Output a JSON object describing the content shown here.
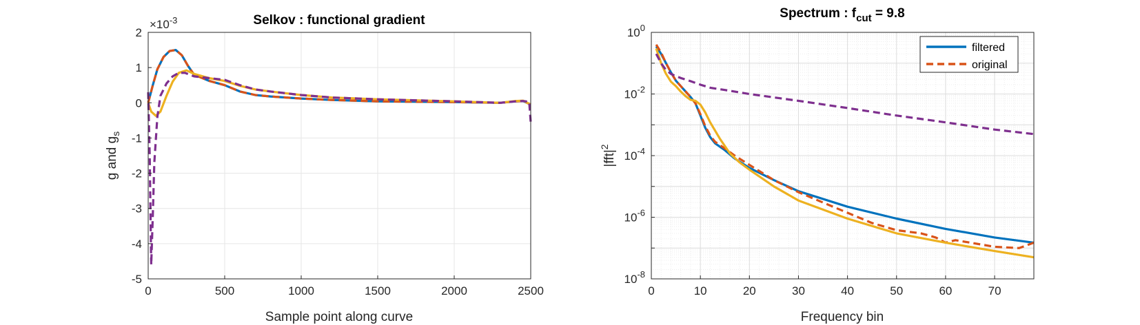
{
  "chart_data": [
    {
      "type": "line",
      "title": "Selkov : functional gradient",
      "xlabel": "Sample point along curve",
      "ylabel": "g and g",
      "ylabel_sub": "s",
      "y_exponent_base": "×10",
      "y_exponent_power": "-3",
      "xlim": [
        0,
        2500
      ],
      "ylim": [
        -5,
        2
      ],
      "xticks": [
        0,
        500,
        1000,
        1500,
        2000,
        2500
      ],
      "yticks": [
        -5,
        -4,
        -3,
        -2,
        -1,
        0,
        1,
        2
      ],
      "xtick_labels": [
        "0",
        "500",
        "1000",
        "1500",
        "2000",
        "2500"
      ],
      "ytick_labels": [
        "-5",
        "-4",
        "-3",
        "-2",
        "-1",
        "0",
        "1",
        "2"
      ],
      "grid": true,
      "series": [
        {
          "color": "#0072BD",
          "style": "solid",
          "x": [
            0,
            30,
            60,
            100,
            140,
            180,
            220,
            260,
            300,
            400,
            500,
            600,
            700,
            800,
            1000,
            1200,
            1500,
            2000,
            2300,
            2400,
            2450,
            2500
          ],
          "y": [
            0.0,
            0.5,
            0.95,
            1.3,
            1.47,
            1.5,
            1.35,
            1.05,
            0.8,
            0.62,
            0.5,
            0.32,
            0.22,
            0.18,
            0.12,
            0.08,
            0.04,
            0.02,
            0.0,
            0.04,
            0.05,
            -0.05
          ]
        },
        {
          "color": "#D95319",
          "style": "dashed",
          "x": [
            0,
            30,
            60,
            100,
            140,
            180,
            220,
            260,
            300,
            400,
            500,
            600,
            700,
            800,
            1000,
            1200,
            1500,
            2000,
            2300,
            2400,
            2450,
            2500
          ],
          "y": [
            0.0,
            0.5,
            0.95,
            1.3,
            1.47,
            1.5,
            1.35,
            1.05,
            0.8,
            0.62,
            0.5,
            0.32,
            0.22,
            0.18,
            0.12,
            0.08,
            0.04,
            0.02,
            0.0,
            0.04,
            0.05,
            -0.05
          ]
        },
        {
          "color": "#EDB120",
          "style": "solid",
          "x": [
            0,
            20,
            50,
            80,
            120,
            160,
            200,
            250,
            300,
            400,
            500,
            600,
            700,
            800,
            1000,
            1200,
            1500,
            2000,
            2300,
            2400,
            2450,
            2500
          ],
          "y": [
            0.0,
            -0.25,
            -0.37,
            -0.25,
            0.2,
            0.6,
            0.85,
            0.92,
            0.82,
            0.7,
            0.62,
            0.48,
            0.38,
            0.32,
            0.22,
            0.15,
            0.1,
            0.04,
            0.0,
            0.05,
            0.06,
            -0.05
          ]
        },
        {
          "color": "#7E2F8E",
          "style": "dashed",
          "x": [
            0,
            10,
            20,
            30,
            40,
            60,
            80,
            120,
            160,
            200,
            240,
            300,
            400,
            500,
            600,
            700,
            800,
            1000,
            1200,
            1500,
            2000,
            2300,
            2400,
            2450,
            2490,
            2500
          ],
          "y": [
            0.3,
            -1.5,
            -4.6,
            -3.2,
            -1.7,
            -0.4,
            0.2,
            0.55,
            0.75,
            0.85,
            0.85,
            0.75,
            0.7,
            0.65,
            0.5,
            0.38,
            0.32,
            0.22,
            0.15,
            0.1,
            0.04,
            0.0,
            0.04,
            0.05,
            0.03,
            -0.55
          ]
        }
      ]
    },
    {
      "type": "line",
      "title": "Spectrum : f",
      "title_sub": "cut",
      "title_suffix": " = 9.8",
      "xlabel": "Frequency bin",
      "ylabel": "|fft|",
      "ylabel_sup": "2",
      "yscale": "log",
      "xlim": [
        0,
        78
      ],
      "ylim": [
        1e-08,
        1
      ],
      "xticks": [
        0,
        10,
        20,
        30,
        40,
        50,
        60,
        70
      ],
      "xtick_labels": [
        "0",
        "10",
        "20",
        "30",
        "40",
        "50",
        "60",
        "70"
      ],
      "ytick_base": "10",
      "ytick_exponents": [
        "-8",
        "-6",
        "-4",
        "-2",
        "0"
      ],
      "grid": true,
      "legend_position": "top-right",
      "legend": [
        "filtered",
        "original"
      ],
      "series": [
        {
          "name": "filtered",
          "color": "#0072BD",
          "style": "solid",
          "x": [
            1,
            2,
            3,
            4,
            5,
            6,
            7,
            8,
            9,
            10,
            11,
            12,
            13,
            15,
            17,
            20,
            25,
            30,
            40,
            50,
            60,
            70,
            78
          ],
          "y": [
            0.35,
            0.2,
            0.1,
            0.05,
            0.027,
            0.018,
            0.012,
            0.008,
            0.005,
            0.002,
            0.0008,
            0.0004,
            0.00025,
            0.00015,
            8e-05,
            4e-05,
            1.6e-05,
            7e-06,
            2.2e-06,
            9e-07,
            4.2e-07,
            2.2e-07,
            1.5e-07
          ]
        },
        {
          "name": "original",
          "color": "#D95319",
          "style": "dashed",
          "x": [
            1,
            2,
            3,
            4,
            5,
            6,
            7,
            8,
            9,
            10,
            11,
            12,
            13,
            15,
            17,
            20,
            25,
            30,
            35,
            40,
            45,
            50,
            55,
            58,
            60,
            62,
            65,
            70,
            75,
            78
          ],
          "y": [
            0.4,
            0.22,
            0.1,
            0.05,
            0.027,
            0.018,
            0.012,
            0.008,
            0.005,
            0.0022,
            0.0009,
            0.00045,
            0.00028,
            0.00017,
            0.0001,
            5e-05,
            1.6e-05,
            6.5e-06,
            3e-06,
            1.4e-06,
            6.5e-07,
            3.8e-07,
            3e-07,
            2.2e-07,
            1.5e-07,
            1.8e-07,
            1.5e-07,
            1.1e-07,
            1e-07,
            1.5e-07
          ]
        },
        {
          "name": "",
          "color": "#EDB120",
          "style": "solid",
          "x": [
            1,
            2,
            3,
            4,
            5,
            6,
            7,
            8,
            9,
            10,
            11,
            12,
            14,
            16,
            18,
            20,
            25,
            30,
            40,
            50,
            60,
            70,
            78
          ],
          "y": [
            0.3,
            0.1,
            0.045,
            0.025,
            0.018,
            0.012,
            0.0085,
            0.0065,
            0.006,
            0.0045,
            0.0025,
            0.0012,
            0.00035,
            0.00012,
            6e-05,
            3.5e-05,
            1e-05,
            3.5e-06,
            9e-07,
            3e-07,
            1.5e-07,
            8e-08,
            5e-08
          ]
        },
        {
          "name": "",
          "color": "#7E2F8E",
          "style": "dashed",
          "x": [
            1,
            2,
            3,
            4,
            5,
            6,
            8,
            10,
            12,
            15,
            20,
            30,
            40,
            50,
            60,
            70,
            78
          ],
          "y": [
            0.2,
            0.1,
            0.06,
            0.045,
            0.038,
            0.033,
            0.026,
            0.02,
            0.016,
            0.0135,
            0.01,
            0.006,
            0.0035,
            0.002,
            0.0012,
            0.0007,
            0.0005
          ]
        }
      ]
    }
  ]
}
